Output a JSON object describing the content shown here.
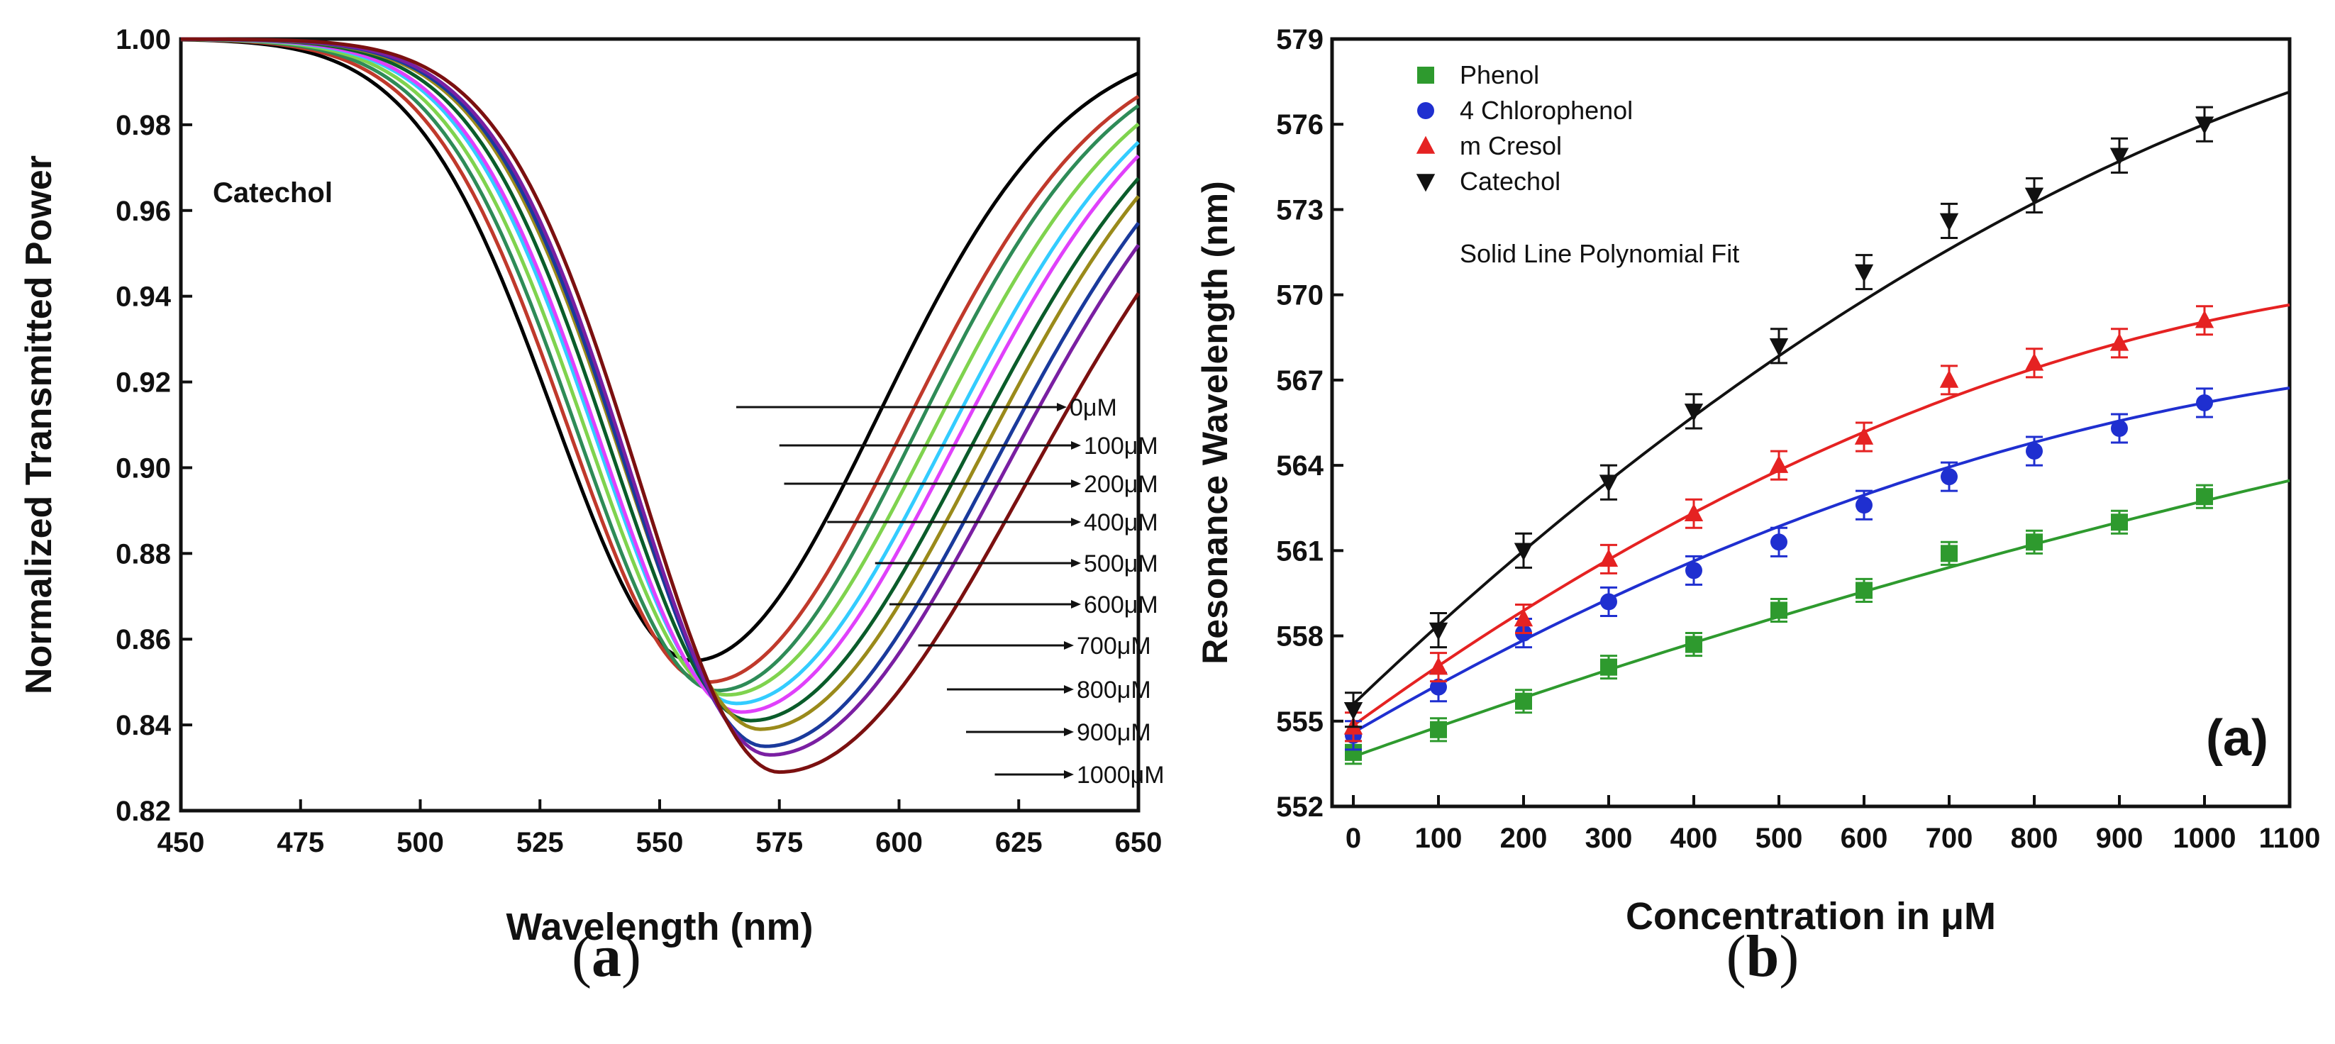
{
  "chart_data": [
    {
      "type": "line",
      "panel_label": "a",
      "annotation": "Catechol",
      "xlabel": "Wavelength (nm)",
      "ylabel": "Normalized Transmitted Power",
      "xlim": [
        450,
        650
      ],
      "ylim": [
        0.82,
        1.0
      ],
      "xticks": [
        "450",
        "475",
        "500",
        "525",
        "550",
        "575",
        "600",
        "625",
        "650"
      ],
      "yticks": [
        "0.82",
        "0.84",
        "0.86",
        "0.88",
        "0.90",
        "0.92",
        "0.94",
        "0.96",
        "0.98",
        "1.00"
      ],
      "series": [
        {
          "name": "0μM",
          "color": "#000000",
          "min_wavelength": 557,
          "min_power": 0.855,
          "end_power": 0.993
        },
        {
          "name": "100μM",
          "color": "#c0392b",
          "min_wavelength": 560,
          "min_power": 0.85,
          "end_power": 0.988
        },
        {
          "name": "200μM",
          "color": "#2e8b57",
          "min_wavelength": 562,
          "min_power": 0.848,
          "end_power": 0.986
        },
        {
          "name": "400μM",
          "color": "#7fd34e",
          "min_wavelength": 564,
          "min_power": 0.847,
          "end_power": 0.982
        },
        {
          "name": "500μM",
          "color": "#33ccff",
          "min_wavelength": 566,
          "min_power": 0.845,
          "end_power": 0.978
        },
        {
          "name": "600μM",
          "color": "#e040fb",
          "min_wavelength": 567,
          "min_power": 0.843,
          "end_power": 0.975
        },
        {
          "name": "700μM",
          "color": "#0a5c2a",
          "min_wavelength": 569,
          "min_power": 0.841,
          "end_power": 0.97
        },
        {
          "name": "800μM",
          "color": "#9a8a1a",
          "min_wavelength": 571,
          "min_power": 0.839,
          "end_power": 0.966
        },
        {
          "name": "900μM",
          "color": "#1a3a9c",
          "min_wavelength": 572,
          "min_power": 0.835,
          "end_power": 0.96
        },
        {
          "name": "900μM ",
          "color": "#7a1fa2",
          "min_wavelength": 573,
          "min_power": 0.833,
          "end_power": 0.955
        },
        {
          "name": "1000μM",
          "color": "#7b1010",
          "min_wavelength": 575,
          "min_power": 0.829,
          "end_power": 0.944
        }
      ],
      "callouts": [
        "0μM",
        "100μM",
        "200μM",
        "400μM",
        "500μM",
        "600μM",
        "700μM",
        "800μM",
        "900μM",
        "1000μM"
      ]
    },
    {
      "type": "scatter",
      "panel_label": "(a)",
      "xlabel": "Concentration in μM",
      "ylabel": "Resonance Wavelength (nm)",
      "xlim": [
        -25,
        1100
      ],
      "ylim": [
        552,
        579
      ],
      "xticks": [
        "0",
        "100",
        "200",
        "300",
        "400",
        "500",
        "600",
        "700",
        "800",
        "900",
        "1000",
        "1100"
      ],
      "yticks": [
        "552",
        "555",
        "558",
        "561",
        "564",
        "567",
        "570",
        "573",
        "576",
        "579"
      ],
      "legend_note": "Solid Line Polynomial Fit",
      "x": [
        0,
        100,
        200,
        300,
        400,
        500,
        600,
        700,
        800,
        900,
        1000
      ],
      "series": [
        {
          "name": "Phenol",
          "marker": "square",
          "color": "#2e9a2e",
          "values": [
            553.9,
            554.7,
            555.7,
            556.9,
            557.7,
            558.9,
            559.6,
            560.9,
            561.3,
            562.0,
            562.9
          ],
          "error": 0.4,
          "fit": [
            553.75,
            0.0107,
            -1.7e-06
          ]
        },
        {
          "name": "4 Chlorophenol",
          "marker": "circle",
          "color": "#1f2fd0",
          "values": [
            554.5,
            556.2,
            558.1,
            559.2,
            560.3,
            561.3,
            562.6,
            563.6,
            564.5,
            565.3,
            566.2
          ],
          "error": 0.5,
          "fit": [
            554.6,
            0.0174,
            -5.8e-06
          ]
        },
        {
          "name": "m Cresol",
          "marker": "triangle-up",
          "color": "#e52222",
          "values": [
            554.8,
            556.9,
            558.6,
            560.7,
            562.3,
            564.0,
            565.0,
            567.0,
            567.6,
            568.3,
            569.1
          ],
          "error": 0.5,
          "fit": [
            554.85,
            0.0217,
            -7.5e-06
          ]
        },
        {
          "name": "Catechol",
          "marker": "triangle-down",
          "color": "#111111",
          "values": [
            555.4,
            558.2,
            561.0,
            563.4,
            565.9,
            568.2,
            570.8,
            572.6,
            573.5,
            574.9,
            576.0
          ],
          "error": 0.6,
          "fit": [
            555.6,
            0.0286,
            -8.2e-06
          ]
        }
      ]
    }
  ],
  "captions": {
    "left": "a",
    "right": "b"
  }
}
